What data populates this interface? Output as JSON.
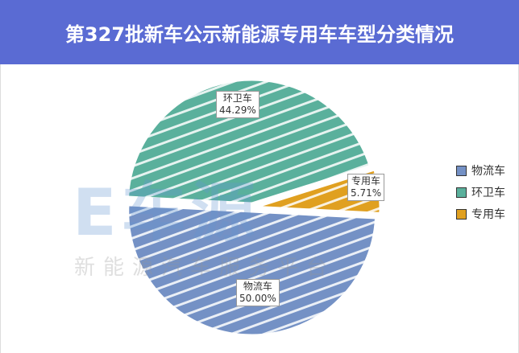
{
  "title": "第327批新车公示新能源专用车车型分类情况",
  "watermark": "新能源汽车服务平台",
  "chart_data": {
    "type": "pie",
    "title": "第327批新车公示新能源专用车车型分类情况",
    "legend_position": "right",
    "slices": [
      {
        "name": "物流车",
        "value": 50.0,
        "label": "50.00%",
        "color": "#7491C5"
      },
      {
        "name": "环卫车",
        "value": 44.29,
        "label": "44.29%",
        "color": "#5AB09C"
      },
      {
        "name": "专用车",
        "value": 5.71,
        "label": "5.71%",
        "color": "#E0A020"
      }
    ]
  }
}
